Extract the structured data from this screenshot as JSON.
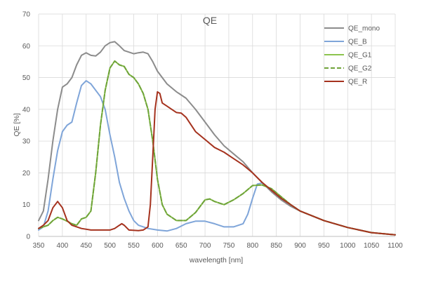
{
  "chart_data": {
    "type": "line",
    "title": "QE",
    "xlabel": "wavelength [nm]",
    "ylabel": "QE [%]",
    "xlim": [
      350,
      1100
    ],
    "ylim": [
      0,
      70
    ],
    "xticks": [
      350,
      400,
      450,
      500,
      550,
      600,
      650,
      700,
      750,
      800,
      850,
      900,
      950,
      1000,
      1050,
      1100
    ],
    "yticks": [
      0,
      10,
      20,
      30,
      40,
      50,
      60,
      70
    ],
    "grid": true,
    "legend_position": "top-right",
    "series": [
      {
        "name": "QE_mono",
        "color": "#8c8c8c",
        "dash": "solid",
        "points": [
          [
            350,
            5
          ],
          [
            360,
            8
          ],
          [
            370,
            18
          ],
          [
            380,
            30
          ],
          [
            390,
            40
          ],
          [
            400,
            47
          ],
          [
            410,
            48
          ],
          [
            420,
            50
          ],
          [
            430,
            54
          ],
          [
            440,
            57
          ],
          [
            450,
            57.8
          ],
          [
            460,
            57
          ],
          [
            470,
            56.8
          ],
          [
            480,
            58
          ],
          [
            490,
            60
          ],
          [
            500,
            61
          ],
          [
            510,
            61.3
          ],
          [
            520,
            60
          ],
          [
            530,
            58.5
          ],
          [
            540,
            58
          ],
          [
            550,
            57.5
          ],
          [
            560,
            57.8
          ],
          [
            570,
            58
          ],
          [
            580,
            57.5
          ],
          [
            590,
            55
          ],
          [
            600,
            52
          ],
          [
            620,
            48
          ],
          [
            640,
            45.5
          ],
          [
            660,
            43.5
          ],
          [
            680,
            40
          ],
          [
            700,
            36
          ],
          [
            720,
            32
          ],
          [
            740,
            28.5
          ],
          [
            760,
            26
          ],
          [
            780,
            23.5
          ],
          [
            800,
            20
          ],
          [
            820,
            17
          ],
          [
            840,
            14
          ],
          [
            860,
            11.5
          ],
          [
            880,
            9.5
          ],
          [
            900,
            8
          ],
          [
            950,
            5
          ],
          [
            1000,
            2.8
          ],
          [
            1050,
            1.2
          ],
          [
            1100,
            0.5
          ]
        ]
      },
      {
        "name": "QE_B",
        "color": "#7fa5d9",
        "dash": "solid",
        "points": [
          [
            350,
            2
          ],
          [
            360,
            3
          ],
          [
            370,
            8
          ],
          [
            380,
            18
          ],
          [
            390,
            27
          ],
          [
            400,
            33
          ],
          [
            410,
            35
          ],
          [
            420,
            36
          ],
          [
            430,
            42
          ],
          [
            440,
            47.5
          ],
          [
            450,
            49
          ],
          [
            460,
            48
          ],
          [
            470,
            46
          ],
          [
            480,
            44
          ],
          [
            490,
            40
          ],
          [
            500,
            32
          ],
          [
            510,
            25
          ],
          [
            520,
            17
          ],
          [
            530,
            12
          ],
          [
            540,
            8
          ],
          [
            550,
            5
          ],
          [
            560,
            3.5
          ],
          [
            580,
            2.5
          ],
          [
            600,
            2
          ],
          [
            620,
            1.7
          ],
          [
            640,
            2.5
          ],
          [
            660,
            4
          ],
          [
            680,
            4.8
          ],
          [
            700,
            4.8
          ],
          [
            720,
            4
          ],
          [
            740,
            3
          ],
          [
            760,
            3
          ],
          [
            780,
            4
          ],
          [
            790,
            7
          ],
          [
            800,
            12
          ],
          [
            810,
            16.5
          ],
          [
            820,
            16.8
          ],
          [
            840,
            14.5
          ],
          [
            860,
            12
          ],
          [
            880,
            10
          ],
          [
            900,
            8
          ],
          [
            950,
            5
          ],
          [
            1000,
            2.8
          ],
          [
            1050,
            1.2
          ],
          [
            1100,
            0.5
          ]
        ]
      },
      {
        "name": "QE_G1",
        "color": "#8cc44e",
        "dash": "solid",
        "points": [
          [
            350,
            2.5
          ],
          [
            370,
            3.5
          ],
          [
            380,
            5
          ],
          [
            390,
            6
          ],
          [
            400,
            5.5
          ],
          [
            410,
            4.8
          ],
          [
            420,
            4
          ],
          [
            430,
            3.5
          ],
          [
            440,
            5.5
          ],
          [
            450,
            6
          ],
          [
            460,
            8
          ],
          [
            470,
            20
          ],
          [
            480,
            35
          ],
          [
            490,
            46
          ],
          [
            500,
            53
          ],
          [
            510,
            55.2
          ],
          [
            520,
            54
          ],
          [
            530,
            53.5
          ],
          [
            540,
            51
          ],
          [
            550,
            50
          ],
          [
            560,
            48
          ],
          [
            570,
            45
          ],
          [
            580,
            40
          ],
          [
            590,
            30
          ],
          [
            600,
            18
          ],
          [
            610,
            10
          ],
          [
            620,
            7
          ],
          [
            640,
            5
          ],
          [
            660,
            5
          ],
          [
            680,
            7.5
          ],
          [
            700,
            11.5
          ],
          [
            710,
            11.8
          ],
          [
            720,
            11
          ],
          [
            740,
            10
          ],
          [
            760,
            11.5
          ],
          [
            780,
            13.5
          ],
          [
            800,
            16
          ],
          [
            820,
            16.2
          ],
          [
            840,
            15
          ],
          [
            860,
            12.5
          ],
          [
            880,
            10
          ],
          [
            900,
            8
          ],
          [
            950,
            5
          ],
          [
            1000,
            2.8
          ],
          [
            1050,
            1.2
          ],
          [
            1100,
            0.5
          ]
        ]
      },
      {
        "name": "QE_G2",
        "color": "#6fa33a",
        "dash": "dashed",
        "points": [
          [
            350,
            2.5
          ],
          [
            370,
            3.5
          ],
          [
            380,
            5
          ],
          [
            390,
            6
          ],
          [
            400,
            5.5
          ],
          [
            410,
            4.8
          ],
          [
            420,
            4
          ],
          [
            430,
            3.5
          ],
          [
            440,
            5.5
          ],
          [
            450,
            6
          ],
          [
            460,
            8
          ],
          [
            470,
            20
          ],
          [
            480,
            35
          ],
          [
            490,
            46
          ],
          [
            500,
            53
          ],
          [
            510,
            55.2
          ],
          [
            520,
            54
          ],
          [
            530,
            53.5
          ],
          [
            540,
            51
          ],
          [
            550,
            50
          ],
          [
            560,
            48
          ],
          [
            570,
            45
          ],
          [
            580,
            40
          ],
          [
            590,
            30
          ],
          [
            600,
            18
          ],
          [
            610,
            10
          ],
          [
            620,
            7
          ],
          [
            640,
            5
          ],
          [
            660,
            5
          ],
          [
            680,
            7.5
          ],
          [
            700,
            11.5
          ],
          [
            710,
            11.8
          ],
          [
            720,
            11
          ],
          [
            740,
            10
          ],
          [
            760,
            11.5
          ],
          [
            780,
            13.5
          ],
          [
            800,
            16
          ],
          [
            820,
            16.2
          ],
          [
            840,
            15
          ],
          [
            860,
            12.5
          ],
          [
            880,
            10
          ],
          [
            900,
            8
          ],
          [
            950,
            5
          ],
          [
            1000,
            2.8
          ],
          [
            1050,
            1.2
          ],
          [
            1100,
            0.5
          ]
        ]
      },
      {
        "name": "QE_R",
        "color": "#a5321e",
        "dash": "solid",
        "points": [
          [
            350,
            2.5
          ],
          [
            360,
            3.5
          ],
          [
            370,
            5
          ],
          [
            380,
            9
          ],
          [
            390,
            11
          ],
          [
            400,
            9
          ],
          [
            410,
            5
          ],
          [
            420,
            3.5
          ],
          [
            440,
            2.5
          ],
          [
            460,
            2
          ],
          [
            480,
            2
          ],
          [
            500,
            2
          ],
          [
            510,
            2.5
          ],
          [
            520,
            3.5
          ],
          [
            525,
            4
          ],
          [
            530,
            3.5
          ],
          [
            540,
            2
          ],
          [
            560,
            1.8
          ],
          [
            570,
            2
          ],
          [
            580,
            3
          ],
          [
            585,
            10
          ],
          [
            590,
            25
          ],
          [
            595,
            40
          ],
          [
            600,
            45.5
          ],
          [
            605,
            45
          ],
          [
            610,
            42
          ],
          [
            620,
            41
          ],
          [
            630,
            40
          ],
          [
            640,
            39
          ],
          [
            650,
            38.8
          ],
          [
            660,
            37.5
          ],
          [
            680,
            33
          ],
          [
            700,
            30.5
          ],
          [
            720,
            28
          ],
          [
            740,
            26.5
          ],
          [
            760,
            24.5
          ],
          [
            780,
            22.5
          ],
          [
            800,
            20
          ],
          [
            820,
            17
          ],
          [
            840,
            14.5
          ],
          [
            860,
            12
          ],
          [
            880,
            10
          ],
          [
            900,
            8
          ],
          [
            950,
            5
          ],
          [
            1000,
            2.8
          ],
          [
            1050,
            1.2
          ],
          [
            1100,
            0.5
          ]
        ]
      }
    ]
  }
}
